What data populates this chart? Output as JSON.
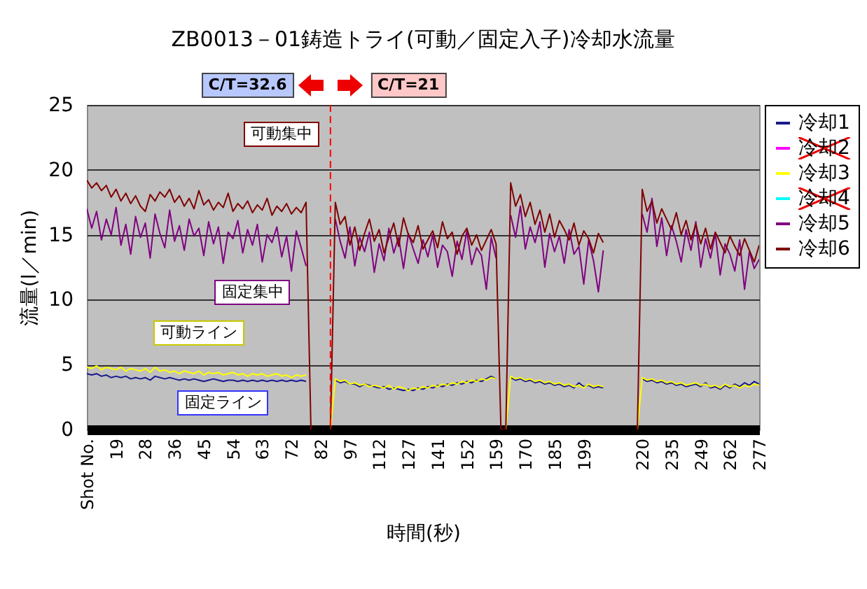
{
  "chart_data": {
    "type": "line",
    "title": "ZB0013－01鋳造トライ(可動／固定入子)冷却水流量",
    "xlabel": "時間(秒)",
    "ylabel": "流量(l／min)",
    "categories": [
      "Shot No.",
      null,
      null,
      null,
      null,
      null,
      "19",
      null,
      null,
      null,
      null,
      null,
      "28",
      null,
      null,
      null,
      null,
      null,
      "36",
      null,
      null,
      null,
      null,
      null,
      "45",
      null,
      null,
      null,
      null,
      null,
      "54",
      null,
      null,
      null,
      null,
      null,
      "63",
      null,
      null,
      null,
      null,
      null,
      "72",
      null,
      null,
      null,
      null,
      null,
      "82",
      null,
      null,
      null,
      null,
      null,
      "97",
      null,
      null,
      null,
      null,
      null,
      "112",
      null,
      null,
      null,
      null,
      null,
      "127",
      null,
      null,
      null,
      null,
      null,
      "141",
      null,
      null,
      null,
      null,
      null,
      "152",
      null,
      null,
      null,
      null,
      null,
      "159",
      null,
      null,
      null,
      null,
      null,
      "170",
      null,
      null,
      null,
      null,
      null,
      "185",
      null,
      null,
      null,
      null,
      null,
      "199",
      null,
      null,
      null,
      null,
      null,
      null,
      null,
      null,
      null,
      null,
      null,
      "220",
      null,
      null,
      null,
      null,
      null,
      "235",
      null,
      null,
      null,
      null,
      null,
      "249",
      null,
      null,
      null,
      null,
      null,
      "262",
      null,
      null,
      null,
      null,
      null,
      "277"
    ],
    "series": [
      {
        "name": "冷却1",
        "color": "#1a1a8c",
        "values": [
          4.3,
          4.2,
          4.3,
          4.1,
          4.2,
          4.0,
          4.1,
          4.0,
          4.1,
          3.9,
          4.0,
          3.9,
          4.0,
          3.8,
          4.1,
          4.0,
          3.9,
          4.0,
          3.9,
          3.8,
          3.9,
          3.8,
          3.9,
          3.8,
          3.7,
          3.8,
          3.9,
          3.8,
          3.7,
          3.8,
          3.8,
          3.7,
          3.8,
          3.7,
          3.8,
          3.7,
          3.8,
          3.7,
          3.8,
          3.7,
          3.8,
          3.7,
          3.8,
          3.7,
          3.8,
          3.7,
          null,
          null,
          null,
          null,
          null,
          3.8,
          3.6,
          3.7,
          3.5,
          3.5,
          3.3,
          3.5,
          3.4,
          3.3,
          3.2,
          3.3,
          3.1,
          3.2,
          3.1,
          3.0,
          3.1,
          3.0,
          3.2,
          3.1,
          3.3,
          3.2,
          3.4,
          3.3,
          3.5,
          3.4,
          3.6,
          3.5,
          3.7,
          3.6,
          3.8,
          3.7,
          3.9,
          4.1,
          3.9,
          null,
          null,
          4.0,
          3.8,
          3.9,
          3.7,
          3.8,
          3.6,
          3.7,
          3.5,
          3.6,
          3.4,
          3.5,
          3.3,
          3.4,
          3.2,
          3.6,
          3.3,
          3.4,
          3.2,
          3.3,
          3.2,
          null,
          null,
          null,
          null,
          null,
          null,
          null,
          3.9,
          3.7,
          3.8,
          3.6,
          3.7,
          3.5,
          3.6,
          3.4,
          3.5,
          3.3,
          3.4,
          3.5,
          3.3,
          3.6,
          3.2,
          3.3,
          3.1,
          3.4,
          3.2,
          3.5,
          3.3,
          3.6,
          3.4,
          3.7,
          3.5
        ]
      },
      {
        "name": "冷却2",
        "color": "#ff00ff",
        "values": [
          null,
          null,
          null,
          null,
          null,
          null,
          null,
          null,
          null,
          null,
          null,
          null,
          null,
          null,
          null,
          null,
          null,
          null,
          null,
          null,
          null,
          null,
          null,
          null,
          null,
          null,
          null,
          null,
          null,
          null,
          null,
          null,
          null,
          null,
          null,
          null,
          null,
          null,
          null,
          null,
          null,
          null,
          null,
          null,
          null,
          null,
          null,
          null,
          null,
          null,
          null,
          null,
          null,
          null,
          null,
          null,
          null,
          null,
          null,
          null,
          null,
          null,
          null,
          null,
          null,
          null,
          null,
          null,
          null,
          null,
          null,
          null,
          null,
          null,
          null,
          null,
          null,
          null,
          null,
          null,
          null,
          null,
          null,
          null,
          null,
          null,
          null,
          null,
          null,
          null,
          null,
          null,
          null,
          null,
          null,
          null,
          null,
          null,
          null,
          null,
          null,
          null,
          null,
          null,
          null,
          null,
          null,
          null,
          null,
          null,
          null,
          null,
          null,
          null,
          null,
          null,
          null,
          null,
          null,
          null,
          null,
          null,
          null,
          null,
          null,
          null,
          null,
          null,
          null,
          null,
          null,
          null,
          null,
          null,
          null,
          null,
          null,
          null,
          null
        ]
      },
      {
        "name": "冷却3",
        "color": "#ffff00",
        "values": [
          4.8,
          4.7,
          4.9,
          4.6,
          4.8,
          4.7,
          4.6,
          4.8,
          4.5,
          4.7,
          4.6,
          4.5,
          4.7,
          4.4,
          4.8,
          4.5,
          4.6,
          4.4,
          4.5,
          4.3,
          4.5,
          4.4,
          4.3,
          4.5,
          4.2,
          4.4,
          4.3,
          4.4,
          4.2,
          4.3,
          4.4,
          4.2,
          4.3,
          4.1,
          4.3,
          4.2,
          4.3,
          4.1,
          4.2,
          4.3,
          4.1,
          4.2,
          4.0,
          4.2,
          4.1,
          4.2,
          null,
          null,
          null,
          null,
          0,
          3.9,
          3.7,
          3.8,
          3.5,
          3.6,
          3.4,
          3.5,
          3.3,
          3.4,
          3.3,
          3.2,
          3.4,
          3.1,
          3.3,
          3.2,
          3.0,
          3.2,
          3.1,
          3.3,
          3.2,
          3.4,
          3.3,
          3.5,
          3.4,
          3.6,
          3.5,
          3.7,
          3.6,
          3.8,
          3.7,
          3.9,
          3.8,
          4.0,
          3.9,
          null,
          0,
          4.1,
          3.9,
          4.0,
          3.8,
          3.9,
          3.7,
          3.8,
          3.6,
          3.7,
          3.5,
          3.6,
          3.4,
          3.5,
          3.3,
          3.4,
          3.2,
          3.5,
          3.3,
          3.4,
          3.3,
          null,
          null,
          null,
          null,
          null,
          null,
          0,
          4.0,
          3.8,
          3.9,
          3.7,
          3.8,
          3.6,
          3.7,
          3.5,
          3.6,
          3.4,
          3.5,
          3.6,
          3.4,
          3.5,
          3.3,
          3.4,
          3.2,
          3.5,
          3.3,
          3.4,
          3.2,
          3.4,
          3.3,
          3.5,
          3.4
        ]
      },
      {
        "name": "冷却4",
        "color": "#00ffff",
        "values": [
          null,
          null,
          null,
          null,
          null,
          null,
          null,
          null,
          null,
          null,
          null,
          null,
          null,
          null,
          null,
          null,
          null,
          null,
          null,
          null,
          null,
          null,
          null,
          null,
          null,
          null,
          null,
          null,
          null,
          null,
          null,
          null,
          null,
          null,
          null,
          null,
          null,
          null,
          null,
          null,
          null,
          null,
          null,
          null,
          null,
          null,
          null,
          null,
          null,
          null,
          null,
          null,
          null,
          null,
          null,
          null,
          null,
          null,
          null,
          null,
          null,
          null,
          null,
          null,
          null,
          null,
          null,
          null,
          null,
          null,
          null,
          null,
          null,
          null,
          null,
          null,
          null,
          null,
          null,
          null,
          null,
          null,
          null,
          null,
          null,
          null,
          null,
          null,
          null,
          null,
          null,
          null,
          null,
          null,
          null,
          null,
          null,
          null,
          null,
          null,
          null,
          null,
          null,
          null,
          null,
          null,
          null,
          null,
          null,
          null,
          null,
          null,
          null,
          null,
          null,
          null,
          null,
          null,
          null,
          null,
          null,
          null,
          null,
          null,
          null,
          null,
          null,
          null,
          null,
          null,
          null,
          null,
          null,
          null,
          null,
          null,
          null,
          null,
          null
        ]
      },
      {
        "name": "冷却5",
        "color": "#800080",
        "values": [
          17.0,
          15.5,
          16.8,
          14.6,
          16.2,
          15.0,
          17.1,
          14.2,
          15.8,
          13.5,
          16.4,
          14.8,
          15.9,
          13.2,
          16.6,
          15.1,
          14.0,
          16.9,
          14.5,
          15.7,
          13.8,
          16.2,
          14.9,
          15.5,
          13.4,
          16.0,
          14.3,
          15.6,
          12.8,
          15.2,
          14.7,
          16.1,
          13.6,
          15.4,
          14.2,
          15.8,
          12.9,
          15.0,
          14.4,
          15.6,
          13.3,
          14.9,
          12.2,
          15.3,
          14.0,
          12.6,
          null,
          null,
          null,
          null,
          null,
          16.2,
          14.5,
          13.2,
          15.6,
          12.6,
          14.8,
          13.7,
          15.2,
          12.1,
          14.3,
          13.0,
          15.5,
          13.6,
          14.8,
          12.4,
          15.1,
          13.9,
          12.8,
          14.6,
          13.3,
          15.0,
          12.5,
          14.2,
          13.7,
          11.8,
          14.5,
          13.1,
          15.3,
          12.7,
          14.0,
          13.4,
          10.8,
          14.8,
          13.2,
          null,
          null,
          16.5,
          14.8,
          17.2,
          13.9,
          15.6,
          14.4,
          16.0,
          12.5,
          15.1,
          13.7,
          14.9,
          12.8,
          15.4,
          13.5,
          14.1,
          11.2,
          14.6,
          13.0,
          10.6,
          13.8,
          null,
          null,
          null,
          null,
          null,
          null,
          null,
          16.6,
          15.2,
          17.8,
          14.1,
          16.3,
          13.4,
          15.7,
          14.5,
          12.9,
          15.4,
          13.8,
          16.0,
          12.5,
          14.7,
          13.2,
          15.1,
          11.9,
          14.3,
          13.5,
          12.2,
          14.6,
          10.8,
          13.7,
          12.4,
          13.1
        ]
      },
      {
        "name": "冷却6",
        "color": "#800000",
        "values": [
          19.2,
          18.6,
          19.0,
          18.4,
          18.8,
          17.9,
          18.5,
          17.6,
          18.2,
          17.4,
          18.0,
          17.2,
          16.8,
          18.1,
          17.6,
          18.3,
          17.9,
          18.5,
          17.5,
          18.0,
          17.2,
          17.8,
          17.0,
          18.4,
          17.3,
          17.7,
          16.9,
          17.5,
          17.1,
          18.2,
          16.8,
          17.4,
          17.0,
          17.6,
          16.7,
          17.3,
          16.9,
          17.8,
          16.5,
          17.2,
          16.8,
          17.4,
          16.6,
          17.1,
          16.7,
          17.5,
          0,
          null,
          null,
          null,
          0,
          17.5,
          15.8,
          16.4,
          14.2,
          15.6,
          13.8,
          15.1,
          16.2,
          14.5,
          15.4,
          13.6,
          14.8,
          15.9,
          14.1,
          16.3,
          15.0,
          14.4,
          15.7,
          13.9,
          14.6,
          15.3,
          14.0,
          16.0,
          14.7,
          15.2,
          13.5,
          14.9,
          15.5,
          14.2,
          15.0,
          13.8,
          14.6,
          15.4,
          14.3,
          0,
          0,
          19.0,
          17.2,
          18.1,
          16.4,
          17.5,
          15.8,
          16.9,
          15.2,
          16.6,
          14.8,
          16.1,
          15.4,
          14.6,
          15.9,
          14.2,
          15.3,
          14.7,
          13.6,
          15.1,
          14.4,
          null,
          null,
          null,
          null,
          null,
          null,
          0,
          18.5,
          16.8,
          17.6,
          15.9,
          17.0,
          16.2,
          15.4,
          16.7,
          15.0,
          16.1,
          14.6,
          15.8,
          14.3,
          15.5,
          13.9,
          15.2,
          14.4,
          13.6,
          14.9,
          14.1,
          13.4,
          14.7,
          13.8,
          12.9,
          14.2
        ]
      }
    ],
    "ylim": [
      0,
      25
    ],
    "yticks": [
      0,
      5,
      10,
      15,
      20,
      25
    ],
    "grid": "y",
    "legend": "right",
    "annotations": [
      "C/T=32.6",
      "C/T=21",
      "可動集中",
      "固定集中",
      "可動ライン",
      "固定ライン"
    ]
  }
}
